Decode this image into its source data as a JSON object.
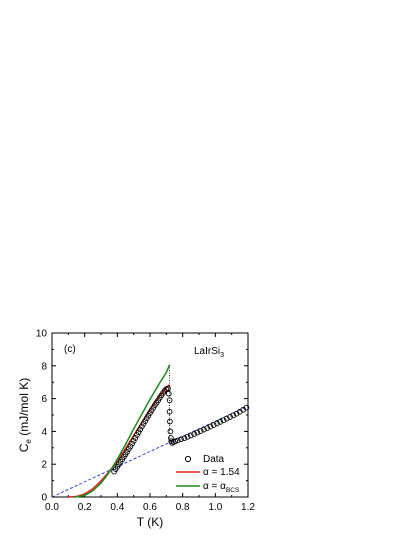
{
  "chart_data": {
    "type": "line",
    "xlabel": "T (K)",
    "ylabel_main": "C",
    "ylabel_sub": "e",
    "ylabel_rest": " (mJ/mol K)",
    "xlim": [
      0.0,
      1.2
    ],
    "ylim": [
      0,
      10
    ],
    "xticks": [
      "0.0",
      "0.2",
      "0.4",
      "0.6",
      "0.8",
      "1.0",
      "1.2"
    ],
    "yticks": [
      "0",
      "2",
      "4",
      "6",
      "8",
      "10"
    ],
    "grid": false,
    "legend_position": "bottom-right",
    "annotations": {
      "panel": "(c)",
      "compound_main": "LaIrSi",
      "compound_sub": "3"
    },
    "legend": {
      "data": "Data",
      "red_main": "α = 1.54",
      "green_main": "α = α",
      "green_sub": "BCS"
    },
    "colors": {
      "data": "#000000",
      "red": "#e8201c",
      "green": "#1a8a1a",
      "normal_state": "#2233cc"
    },
    "series": [
      {
        "name": "Data",
        "kind": "scatter",
        "points": [
          [
            0.38,
            1.55
          ],
          [
            0.39,
            1.7
          ],
          [
            0.4,
            1.85
          ],
          [
            0.41,
            2.0
          ],
          [
            0.42,
            2.15
          ],
          [
            0.43,
            2.3
          ],
          [
            0.44,
            2.45
          ],
          [
            0.45,
            2.6
          ],
          [
            0.46,
            2.75
          ],
          [
            0.47,
            2.92
          ],
          [
            0.48,
            3.08
          ],
          [
            0.49,
            3.25
          ],
          [
            0.5,
            3.42
          ],
          [
            0.51,
            3.6
          ],
          [
            0.52,
            3.78
          ],
          [
            0.53,
            3.95
          ],
          [
            0.54,
            4.12
          ],
          [
            0.55,
            4.3
          ],
          [
            0.56,
            4.47
          ],
          [
            0.57,
            4.63
          ],
          [
            0.58,
            4.8
          ],
          [
            0.59,
            4.96
          ],
          [
            0.6,
            5.12
          ],
          [
            0.61,
            5.28
          ],
          [
            0.62,
            5.44
          ],
          [
            0.63,
            5.6
          ],
          [
            0.64,
            5.75
          ],
          [
            0.65,
            5.9
          ],
          [
            0.66,
            6.05
          ],
          [
            0.67,
            6.2
          ],
          [
            0.68,
            6.35
          ],
          [
            0.69,
            6.48
          ],
          [
            0.7,
            6.58
          ],
          [
            0.71,
            6.62
          ],
          [
            0.715,
            6.3
          ],
          [
            0.72,
            5.9
          ],
          [
            0.72,
            5.2
          ],
          [
            0.722,
            4.6
          ],
          [
            0.725,
            4.0
          ],
          [
            0.728,
            3.6
          ],
          [
            0.73,
            3.4
          ],
          [
            0.735,
            3.3
          ],
          [
            0.745,
            3.35
          ],
          [
            0.755,
            3.4
          ],
          [
            0.77,
            3.45
          ],
          [
            0.79,
            3.52
          ],
          [
            0.81,
            3.58
          ],
          [
            0.83,
            3.67
          ],
          [
            0.85,
            3.75
          ],
          [
            0.87,
            3.84
          ],
          [
            0.89,
            3.93
          ],
          [
            0.91,
            4.02
          ],
          [
            0.93,
            4.11
          ],
          [
            0.95,
            4.2
          ],
          [
            0.97,
            4.3
          ],
          [
            0.99,
            4.39
          ],
          [
            1.01,
            4.48
          ],
          [
            1.03,
            4.58
          ],
          [
            1.05,
            4.68
          ],
          [
            1.07,
            4.78
          ],
          [
            1.09,
            4.88
          ],
          [
            1.11,
            4.98
          ],
          [
            1.13,
            5.08
          ],
          [
            1.15,
            5.2
          ],
          [
            1.17,
            5.32
          ],
          [
            1.19,
            5.45
          ]
        ]
      },
      {
        "name": "α = 1.54",
        "kind": "line",
        "points": [
          [
            0.1,
            0.0
          ],
          [
            0.15,
            0.03
          ],
          [
            0.2,
            0.18
          ],
          [
            0.25,
            0.5
          ],
          [
            0.3,
            0.98
          ],
          [
            0.35,
            1.55
          ],
          [
            0.4,
            2.2
          ],
          [
            0.45,
            2.95
          ],
          [
            0.5,
            3.75
          ],
          [
            0.55,
            4.55
          ],
          [
            0.6,
            5.35
          ],
          [
            0.65,
            6.05
          ],
          [
            0.7,
            6.65
          ],
          [
            0.72,
            6.85
          ]
        ]
      },
      {
        "name": "α = αBCS",
        "kind": "line",
        "points": [
          [
            0.13,
            0.0
          ],
          [
            0.16,
            0.02
          ],
          [
            0.2,
            0.1
          ],
          [
            0.25,
            0.38
          ],
          [
            0.3,
            0.85
          ],
          [
            0.35,
            1.5
          ],
          [
            0.4,
            2.3
          ],
          [
            0.45,
            3.2
          ],
          [
            0.5,
            4.15
          ],
          [
            0.55,
            5.05
          ],
          [
            0.6,
            5.95
          ],
          [
            0.65,
            6.8
          ],
          [
            0.7,
            7.6
          ],
          [
            0.72,
            8.05
          ]
        ]
      },
      {
        "name": "normal-state",
        "kind": "dashed",
        "points": [
          [
            0.0,
            0.0
          ],
          [
            1.2,
            5.55
          ]
        ]
      },
      {
        "name": "jump",
        "kind": "dotted",
        "points": [
          [
            0.72,
            8.05
          ],
          [
            0.72,
            3.35
          ]
        ]
      }
    ]
  }
}
